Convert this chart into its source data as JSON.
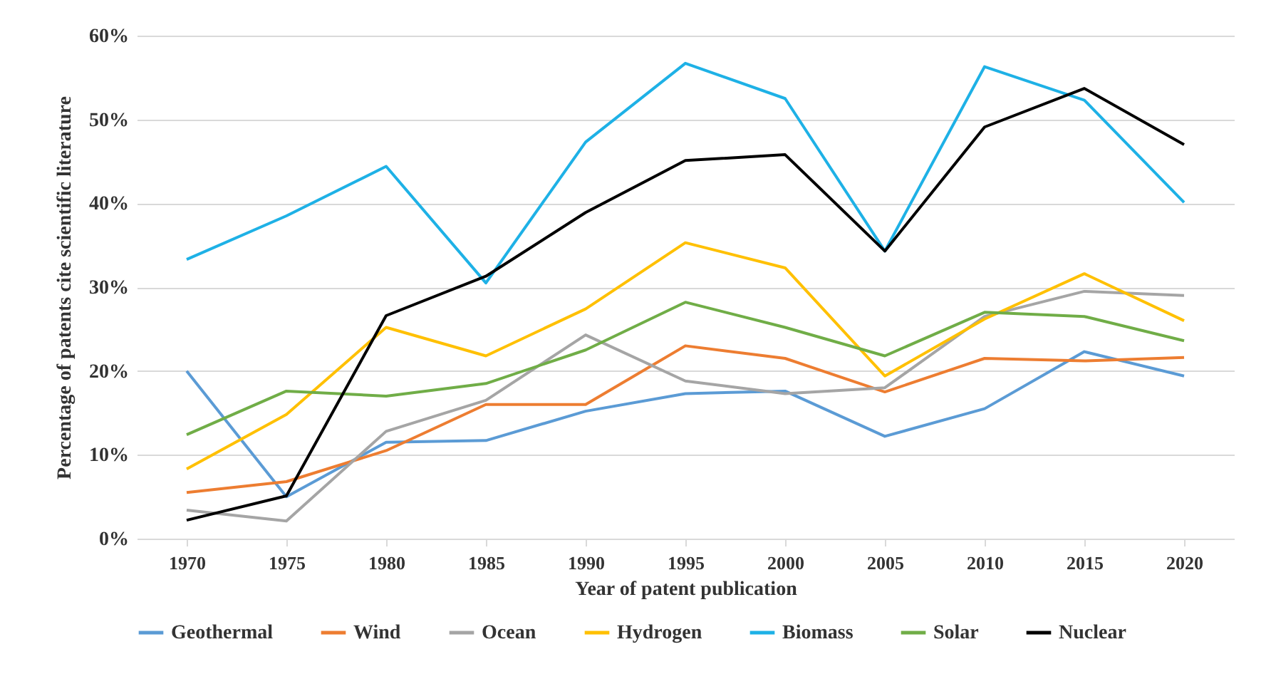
{
  "chart_data": {
    "type": "line",
    "xlabel": "Year of patent publication",
    "ylabel": "Percentage of patents  cite scientific literature",
    "categories": [
      "1970",
      "1975",
      "1980",
      "1985",
      "1990",
      "1995",
      "2000",
      "2005",
      "2010",
      "2015",
      "2020"
    ],
    "ylim": [
      0,
      60
    ],
    "yticks": [
      {
        "value": 0,
        "label": "0%"
      },
      {
        "value": 10,
        "label": "10%"
      },
      {
        "value": 20,
        "label": "20%"
      },
      {
        "value": 30,
        "label": "30%"
      },
      {
        "value": 40,
        "label": "40%"
      },
      {
        "value": 50,
        "label": "50%"
      },
      {
        "value": 60,
        "label": "60%"
      }
    ],
    "grid": "y",
    "legend": "bottom",
    "marker": "none",
    "line_style": "solid",
    "series": [
      {
        "name": "Geothermal",
        "color": "#5b9bd5",
        "values": [
          20,
          5,
          11.5,
          11.7,
          15.2,
          17.3,
          17.6,
          12.2,
          15.5,
          22.3,
          19.4
        ]
      },
      {
        "name": "Wind",
        "color": "#ed7d31",
        "values": [
          5.5,
          6.8,
          10.5,
          16,
          16,
          23,
          21.5,
          17.5,
          21.5,
          21.2,
          21.6
        ]
      },
      {
        "name": "Ocean",
        "color": "#a5a5a5",
        "values": [
          3.4,
          2.1,
          12.8,
          16.5,
          24.3,
          18.8,
          17.3,
          18,
          26.5,
          29.5,
          29
        ]
      },
      {
        "name": "Hydrogen",
        "color": "#ffc000",
        "values": [
          8.3,
          14.8,
          25.2,
          21.8,
          27.4,
          35.3,
          32.3,
          19.4,
          26.2,
          31.6,
          26
        ]
      },
      {
        "name": "Biomass",
        "color": "#1eb1e6",
        "values": [
          33.3,
          38.5,
          44.4,
          30.5,
          47.3,
          56.7,
          52.5,
          34.3,
          56.3,
          52.3,
          40.1
        ]
      },
      {
        "name": "Solar",
        "color": "#70ad47",
        "values": [
          12.4,
          17.6,
          17,
          18.5,
          22.5,
          28.2,
          25.2,
          21.8,
          27,
          26.5,
          23.6
        ]
      },
      {
        "name": "Nuclear",
        "color": "#000000",
        "values": [
          2.2,
          5.1,
          26.6,
          31.3,
          38.9,
          45.1,
          45.8,
          34.3,
          49.1,
          53.7,
          47
        ]
      }
    ]
  }
}
